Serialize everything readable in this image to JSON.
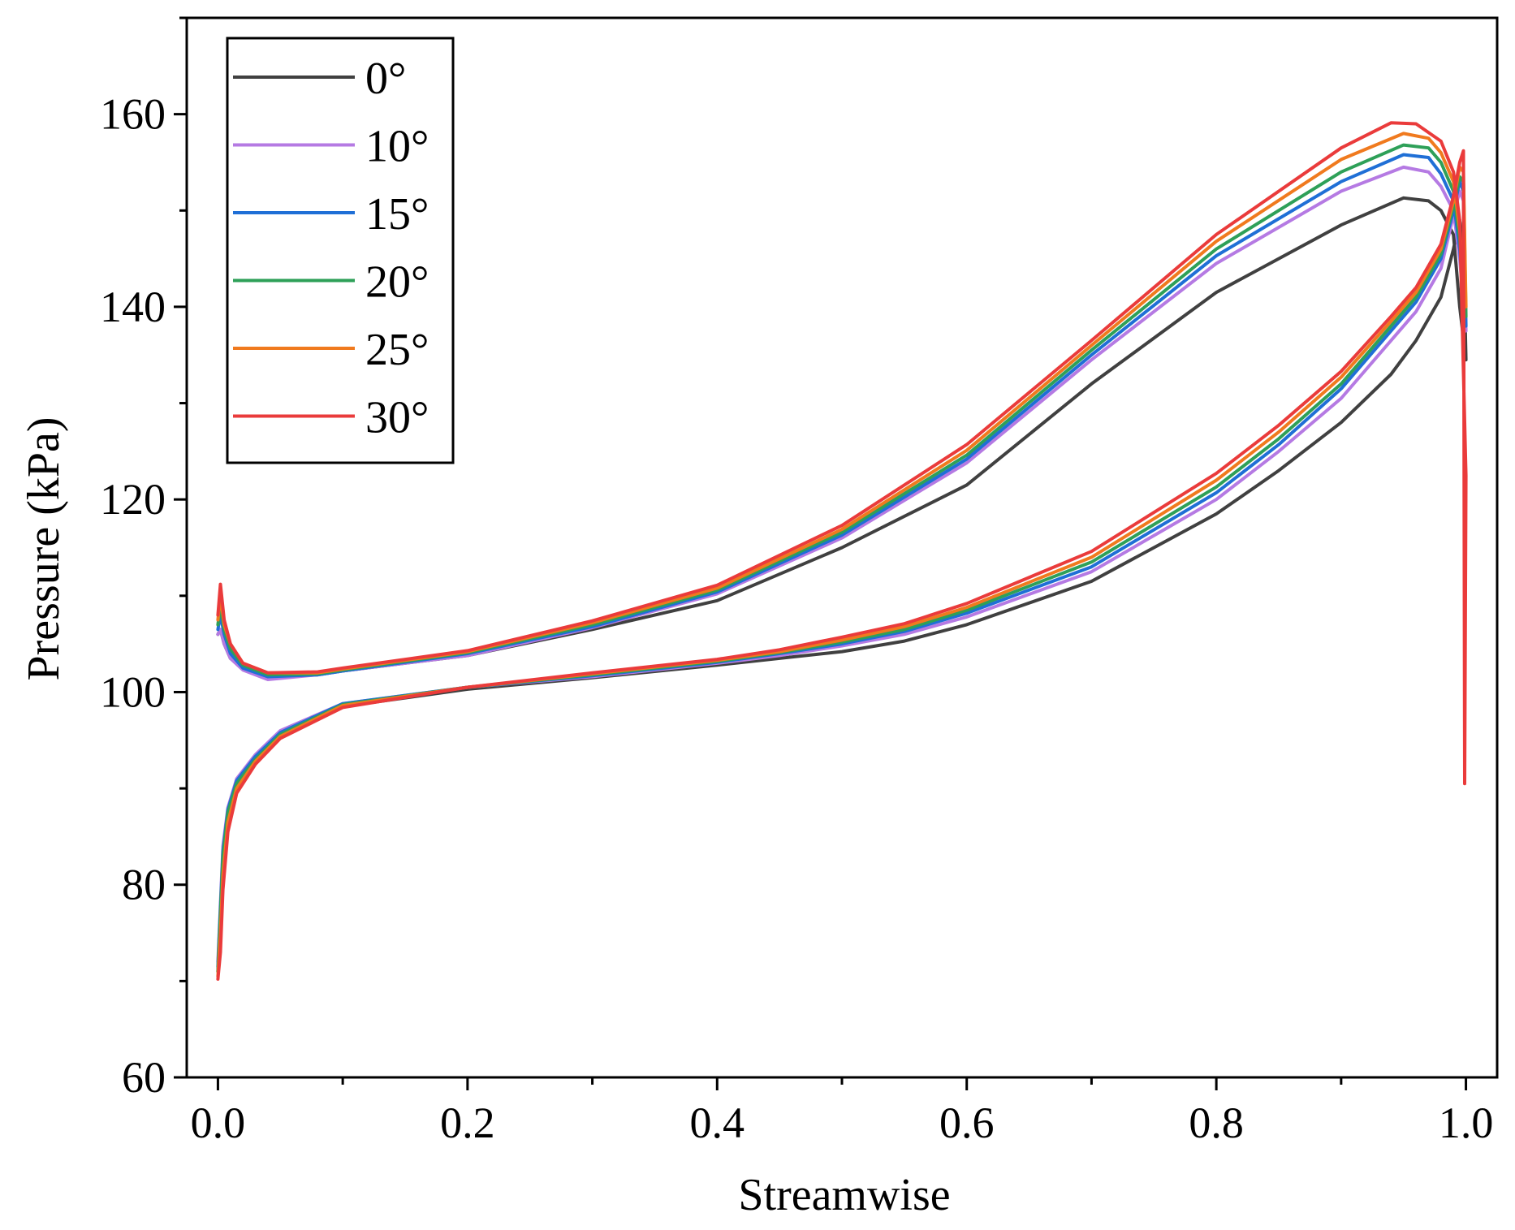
{
  "chart_data": {
    "type": "line",
    "title": "",
    "xlabel": "Streamwise",
    "ylabel": "Pressure (kPa)",
    "xlim": [
      -0.025,
      1.025
    ],
    "ylim": [
      60,
      170
    ],
    "xticks": [
      0.0,
      0.2,
      0.4,
      0.6,
      0.8,
      1.0
    ],
    "xtick_labels": [
      "0.0",
      "0.2",
      "0.4",
      "0.6",
      "0.8",
      "1.0"
    ],
    "yticks": [
      60,
      80,
      100,
      120,
      140,
      160
    ],
    "ytick_labels": [
      "60",
      "80",
      "100",
      "120",
      "140",
      "160"
    ],
    "grid": false,
    "legend_position": "top-left",
    "series": [
      {
        "name": "0°",
        "color": "#404040",
        "x": [
          0.0,
          0.002,
          0.005,
          0.01,
          0.02,
          0.04,
          0.08,
          0.1,
          0.2,
          0.3,
          0.4,
          0.5,
          0.6,
          0.7,
          0.8,
          0.9,
          0.95,
          0.97,
          0.98,
          0.99,
          0.995,
          1.0,
          0.998,
          0.995,
          0.99,
          0.98,
          0.96,
          0.94,
          0.9,
          0.85,
          0.8,
          0.7,
          0.6,
          0.55,
          0.5,
          0.45,
          0.4,
          0.3,
          0.2,
          0.1,
          0.05,
          0.03,
          0.015,
          0.008,
          0.004,
          0.002,
          0.0
        ],
        "y": [
          106,
          106.5,
          105,
          103.5,
          102.5,
          101.5,
          101.8,
          102.2,
          103.8,
          106.5,
          109.5,
          115,
          121.5,
          132,
          141.5,
          148.5,
          151.3,
          151,
          150,
          147.5,
          140,
          134.5,
          146.5,
          149,
          146,
          141,
          136.5,
          133,
          128,
          123,
          118.5,
          111.5,
          107,
          105.3,
          104.2,
          103.5,
          102.8,
          101.5,
          100.3,
          98.5,
          95.5,
          93,
          90.5,
          87,
          82,
          76,
          71
        ]
      },
      {
        "name": "10°",
        "color": "#b57ae3",
        "x": [
          0.0,
          0.002,
          0.005,
          0.01,
          0.02,
          0.04,
          0.08,
          0.1,
          0.2,
          0.3,
          0.4,
          0.5,
          0.6,
          0.7,
          0.8,
          0.9,
          0.95,
          0.97,
          0.98,
          0.99,
          0.995,
          1.0,
          0.998,
          0.995,
          0.99,
          0.98,
          0.96,
          0.94,
          0.9,
          0.85,
          0.8,
          0.7,
          0.6,
          0.55,
          0.5,
          0.45,
          0.4,
          0.3,
          0.2,
          0.1,
          0.05,
          0.03,
          0.015,
          0.008,
          0.004,
          0.002,
          0.0
        ],
        "y": [
          106,
          106.5,
          105,
          103.5,
          102.3,
          101.3,
          101.8,
          102.2,
          103.8,
          106.7,
          110.2,
          116,
          123.8,
          134.5,
          144.5,
          152,
          154.5,
          154,
          152.5,
          150,
          145,
          137.5,
          151,
          152,
          149.5,
          144,
          139.5,
          136.5,
          130.5,
          125,
          120,
          112.5,
          107.8,
          106,
          104.8,
          103.8,
          103,
          101.6,
          100.5,
          98.8,
          96,
          93.5,
          91,
          88,
          84,
          78,
          72
        ]
      },
      {
        "name": "15°",
        "color": "#1f6fd6",
        "x": [
          0.0,
          0.002,
          0.005,
          0.01,
          0.02,
          0.04,
          0.08,
          0.1,
          0.2,
          0.3,
          0.4,
          0.5,
          0.6,
          0.7,
          0.8,
          0.9,
          0.95,
          0.97,
          0.98,
          0.99,
          0.995,
          1.0,
          0.998,
          0.995,
          0.99,
          0.98,
          0.96,
          0.94,
          0.9,
          0.85,
          0.8,
          0.7,
          0.6,
          0.55,
          0.5,
          0.45,
          0.4,
          0.3,
          0.2,
          0.1,
          0.05,
          0.03,
          0.015,
          0.008,
          0.004,
          0.002,
          0.0
        ],
        "y": [
          106.5,
          108,
          106,
          104,
          102.5,
          101.6,
          101.8,
          102.2,
          104,
          106.8,
          110.4,
          116.3,
          124.2,
          135,
          145.3,
          153,
          155.8,
          155.5,
          153.8,
          151,
          146,
          138,
          152,
          153,
          150,
          145,
          140.5,
          137.5,
          131.5,
          125.7,
          120.7,
          113,
          108.2,
          106.3,
          105,
          104,
          103.1,
          101.7,
          100.5,
          98.8,
          95.8,
          93.3,
          90.8,
          87.8,
          83.5,
          77.5,
          71.5
        ]
      },
      {
        "name": "20°",
        "color": "#2ea058",
        "x": [
          0.0,
          0.002,
          0.005,
          0.01,
          0.02,
          0.04,
          0.08,
          0.1,
          0.2,
          0.3,
          0.4,
          0.5,
          0.6,
          0.7,
          0.8,
          0.9,
          0.95,
          0.97,
          0.98,
          0.99,
          0.995,
          1.0,
          0.998,
          0.995,
          0.99,
          0.98,
          0.96,
          0.94,
          0.9,
          0.85,
          0.8,
          0.7,
          0.6,
          0.55,
          0.5,
          0.45,
          0.4,
          0.3,
          0.2,
          0.1,
          0.05,
          0.03,
          0.015,
          0.008,
          0.004,
          0.002,
          0.0
        ],
        "y": [
          107,
          109,
          106.5,
          104.5,
          102.8,
          101.8,
          101.9,
          102.3,
          104.1,
          107,
          110.6,
          116.6,
          124.6,
          135.5,
          146,
          154,
          156.8,
          156.5,
          155,
          152,
          147,
          139,
          153,
          153.5,
          150.5,
          145.5,
          141,
          138,
          132,
          126.3,
          121.3,
          113.5,
          108.5,
          106.5,
          105.2,
          104.1,
          103.2,
          101.8,
          100.5,
          98.7,
          95.6,
          93,
          90.5,
          87.5,
          83,
          77,
          71
        ]
      },
      {
        "name": "25°",
        "color": "#f07a1e",
        "x": [
          0.0,
          0.002,
          0.005,
          0.01,
          0.02,
          0.04,
          0.08,
          0.1,
          0.2,
          0.3,
          0.4,
          0.5,
          0.6,
          0.7,
          0.8,
          0.9,
          0.95,
          0.97,
          0.98,
          0.99,
          0.995,
          1.0,
          0.998,
          0.995,
          0.99,
          0.98,
          0.96,
          0.94,
          0.9,
          0.85,
          0.8,
          0.7,
          0.6,
          0.55,
          0.5,
          0.45,
          0.4,
          0.3,
          0.2,
          0.1,
          0.05,
          0.03,
          0.015,
          0.008,
          0.004,
          0.002,
          0.0
        ],
        "y": [
          107.5,
          110,
          107,
          105,
          103,
          102,
          102,
          102.4,
          104.2,
          107.2,
          110.8,
          116.9,
          125.1,
          136,
          146.8,
          155.3,
          158,
          157.5,
          156,
          153,
          148,
          140,
          154,
          154.5,
          151,
          146,
          141.5,
          138.5,
          132.7,
          127,
          122,
          114,
          108.8,
          106.8,
          105.4,
          104.2,
          103.3,
          101.9,
          100.5,
          98.6,
          95.4,
          92.8,
          90,
          86.5,
          81,
          75,
          70.5
        ]
      },
      {
        "name": "30°",
        "color": "#ea3b3b",
        "x": [
          0.0,
          0.002,
          0.005,
          0.01,
          0.02,
          0.04,
          0.08,
          0.1,
          0.2,
          0.3,
          0.4,
          0.5,
          0.6,
          0.7,
          0.8,
          0.9,
          0.94,
          0.96,
          0.98,
          0.99,
          0.995,
          1.0,
          0.999,
          0.998,
          0.995,
          0.99,
          0.98,
          0.96,
          0.94,
          0.9,
          0.85,
          0.8,
          0.7,
          0.6,
          0.55,
          0.5,
          0.45,
          0.4,
          0.3,
          0.2,
          0.1,
          0.05,
          0.03,
          0.015,
          0.008,
          0.004,
          0.002,
          0.0
        ],
        "y": [
          108,
          111.2,
          107.5,
          105,
          103,
          102,
          102.1,
          102.5,
          104.3,
          107.4,
          111.1,
          117.3,
          125.7,
          136.5,
          147.5,
          156.5,
          159.1,
          159,
          157.2,
          154,
          149,
          122.5,
          90.5,
          156.2,
          155,
          151.5,
          146.5,
          142,
          139,
          133.3,
          127.7,
          122.7,
          114.6,
          109.2,
          107.1,
          105.7,
          104.4,
          103.4,
          102,
          100.5,
          98.4,
          95.2,
          92.5,
          89.5,
          85.5,
          79.5,
          73,
          70.2
        ]
      }
    ]
  }
}
